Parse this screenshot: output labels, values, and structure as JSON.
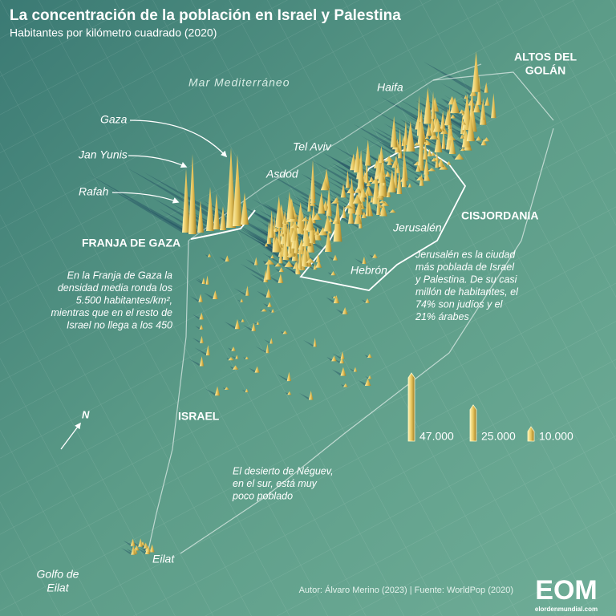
{
  "header": {
    "title": "La concentración de la población en Israel y Palestina",
    "subtitle": "Habitantes por kilómetro cuadrado (2020)"
  },
  "places": {
    "sea": "Mar Mediterráneo",
    "haifa": "Haifa",
    "golan": [
      "ALTOS DEL",
      "GOLÁN"
    ],
    "gaza": "Gaza",
    "jan_yunis": "Jan Yunis",
    "rafah": "Rafah",
    "tel_aviv": "Tel Aviv",
    "asdod": "Asdod",
    "cisjordania": "CISJORDANIA",
    "jerusalen": "Jerusalén",
    "franja": "FRANJA DE GAZA",
    "hebron": "Hebrón",
    "israel": "ISRAEL",
    "eilat": "Eilat",
    "gulf": [
      "Golfo de",
      "Eilat"
    ],
    "north": "N"
  },
  "annotations": {
    "gaza_note": [
      "En la Franja de Gaza la",
      "densidad media ronda los",
      "5.500 habitantes/km²,",
      "mientras que en el resto de",
      "Israel no llega a los 450"
    ],
    "jerusalem_note": [
      "Jerusalén es la ciudad",
      "más poblada de Israel",
      "y Palestina. De su casi",
      "millón de habitantes, el",
      "74% son judíos y el",
      "21% árabes"
    ],
    "negev_note": [
      "El desierto de Néguev,",
      "en el sur, está muy",
      "poco poblado"
    ]
  },
  "legend": [
    {
      "value": 47000,
      "label": "47.000"
    },
    {
      "value": 25000,
      "label": "25.000"
    },
    {
      "value": 10000,
      "label": "10.000"
    }
  ],
  "footer": {
    "credit": "Autor: Álvaro Merino (2023) | Fuente: WorldPop (2020)",
    "logo": "EOM",
    "site": "elordenmundial.com"
  }
}
